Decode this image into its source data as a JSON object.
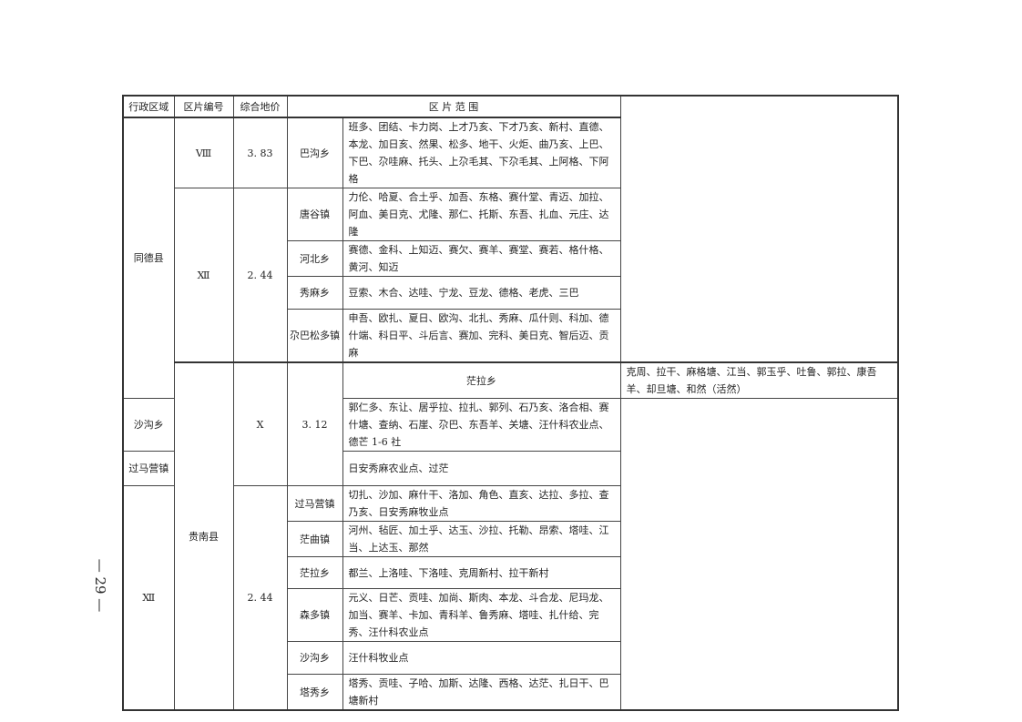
{
  "headers": {
    "region": "行政区域",
    "zone_no": "区片编号",
    "price": "综合地价",
    "range": "区 片 范 围"
  },
  "counties": [
    {
      "name": "同德县",
      "zones": [
        {
          "no": "Ⅷ",
          "price": "3. 83",
          "towns": [
            {
              "town": "巴沟乡",
              "villages": "班多、团结、卡力岗、上才乃亥、下才乃亥、新村、直德、本龙、加日亥、然果、松多、地干、火炬、曲乃亥、上巴、下巴、尕哇麻、托头、上尕毛其、下尕毛其、上阿格、下阿格"
            }
          ]
        },
        {
          "no": "Ⅻ",
          "price": "2. 44",
          "towns": [
            {
              "town": "唐谷镇",
              "villages": "力伦、哈夏、合土乎、加吾、东格、赛什堂、青迈、加拉、阿血、美日克、尤隆、那仁、托斯、东吾、扎血、元庄、达隆"
            },
            {
              "town": "河北乡",
              "villages": "赛德、金科、上知迈、赛欠、赛羊、赛堂、赛若、格什格、黄河、知迈"
            },
            {
              "town": "秀麻乡",
              "villages": "豆索、木合、达哇、宁龙、豆龙、德格、老虎、三巴"
            },
            {
              "town": "尕巴松多镇",
              "villages": "申吾、欧扎、夏日、欧沟、北扎、秀麻、瓜什则、科加、德什端、科日平、斗后言、赛加、完科、美日克、智后迈、贡麻"
            }
          ]
        }
      ]
    },
    {
      "name": "贵南县",
      "zones": [
        {
          "no": "Ⅹ",
          "price": "3. 12",
          "towns": [
            {
              "town": "茫拉乡",
              "villages": "克周、拉干、麻格塘、江当、郭玉乎、吐鲁、郭拉、康吾羊、却旦塘、和然（活然）"
            },
            {
              "town": "沙沟乡",
              "villages": "郭仁多、东让、居乎拉、拉扎、郭列、石乃亥、洛合相、赛什塘、查纳、石崖、尕巴、东吾羊、关塘、汪什科农业点、德芒 1-6 社"
            },
            {
              "town": "过马营镇",
              "villages": "日安秀麻农业点、过茫"
            }
          ]
        },
        {
          "no": "Ⅻ",
          "price": "2. 44",
          "towns": [
            {
              "town": "过马营镇",
              "villages": "切扎、沙加、麻什干、洛加、角色、直亥、达拉、多拉、查乃亥、日安秀麻牧业点"
            },
            {
              "town": "茫曲镇",
              "villages": "河州、毡匠、加土乎、达玉、沙拉、托勒、昂索、塔哇、江当、上达玉、那然"
            },
            {
              "town": "茫拉乡",
              "villages": "都兰、上洛哇、下洛哇、克周新村、拉干新村"
            },
            {
              "town": "森多镇",
              "villages": "元义、日芒、贡哇、加尚、斯肉、本龙、斗合龙、尼玛龙、加当、赛羊、卡加、青科羊、鲁秀麻、塔哇、扎什给、完秀、汪什科农业点"
            },
            {
              "town": "沙沟乡",
              "villages": "汪什科牧业点"
            },
            {
              "town": "塔秀乡",
              "villages": "塔秀、贡哇、子哈、加斯、达隆、西格、达茫、扎日干、巴塘新村"
            }
          ]
        }
      ]
    }
  ],
  "page_number": "— 29 —"
}
